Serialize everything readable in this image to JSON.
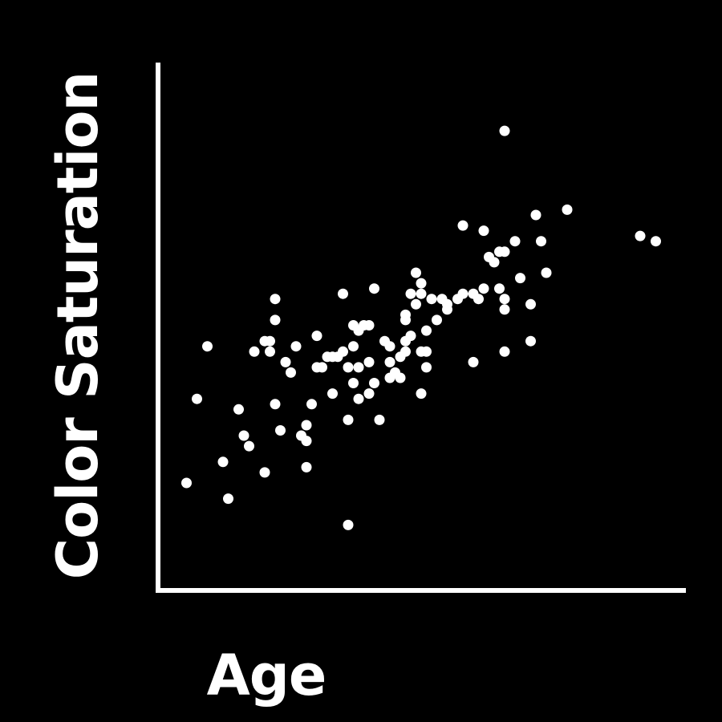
{
  "chart_data": {
    "type": "scatter",
    "title": "",
    "xlabel": "Age",
    "ylabel": "Color Saturation",
    "xlim": [
      0,
      100
    ],
    "ylim": [
      0,
      100
    ],
    "grid": false,
    "legend": "none",
    "colors": {
      "background": "#000000",
      "foreground": "#ffffff",
      "points": "#ffffff"
    },
    "points": [
      [
        5,
        20
      ],
      [
        7,
        36
      ],
      [
        9,
        46
      ],
      [
        12,
        24
      ],
      [
        13,
        17
      ],
      [
        15,
        34
      ],
      [
        16,
        29
      ],
      [
        17,
        27
      ],
      [
        18,
        45
      ],
      [
        20,
        22
      ],
      [
        21,
        45
      ],
      [
        20,
        47
      ],
      [
        21,
        47
      ],
      [
        22,
        55
      ],
      [
        22,
        51
      ],
      [
        22,
        35
      ],
      [
        23,
        30
      ],
      [
        24,
        43
      ],
      [
        25,
        41
      ],
      [
        26,
        46
      ],
      [
        27,
        29
      ],
      [
        28,
        31
      ],
      [
        28,
        28
      ],
      [
        28,
        23
      ],
      [
        29,
        35
      ],
      [
        30,
        48
      ],
      [
        30,
        42
      ],
      [
        31,
        42
      ],
      [
        32,
        44
      ],
      [
        33,
        37
      ],
      [
        33,
        44
      ],
      [
        34,
        44
      ],
      [
        35,
        56
      ],
      [
        35,
        45
      ],
      [
        36,
        32
      ],
      [
        36,
        42
      ],
      [
        36,
        12
      ],
      [
        37,
        50
      ],
      [
        37,
        46
      ],
      [
        37,
        39
      ],
      [
        38,
        49
      ],
      [
        38,
        36
      ],
      [
        38,
        42
      ],
      [
        39,
        50
      ],
      [
        40,
        37
      ],
      [
        40,
        50
      ],
      [
        40,
        43
      ],
      [
        41,
        39
      ],
      [
        41,
        57
      ],
      [
        42,
        32
      ],
      [
        43,
        47
      ],
      [
        44,
        46
      ],
      [
        44,
        43
      ],
      [
        44,
        40
      ],
      [
        45,
        41
      ],
      [
        46,
        40
      ],
      [
        46,
        44
      ],
      [
        47,
        47
      ],
      [
        47,
        52
      ],
      [
        47,
        45
      ],
      [
        47,
        51
      ],
      [
        48,
        48
      ],
      [
        48,
        56
      ],
      [
        49,
        54
      ],
      [
        49,
        60
      ],
      [
        50,
        58
      ],
      [
        50,
        56
      ],
      [
        50,
        45
      ],
      [
        50,
        37
      ],
      [
        51,
        42
      ],
      [
        51,
        45
      ],
      [
        51,
        49
      ],
      [
        52,
        55
      ],
      [
        53,
        51
      ],
      [
        54,
        55
      ],
      [
        55,
        54
      ],
      [
        55,
        53
      ],
      [
        57,
        55
      ],
      [
        58,
        56
      ],
      [
        58,
        69
      ],
      [
        60,
        56
      ],
      [
        60,
        43
      ],
      [
        61,
        55
      ],
      [
        62,
        57
      ],
      [
        62,
        68
      ],
      [
        63,
        63
      ],
      [
        64,
        62
      ],
      [
        65,
        64
      ],
      [
        65,
        57
      ],
      [
        66,
        55
      ],
      [
        66,
        64
      ],
      [
        66,
        53
      ],
      [
        66,
        45
      ],
      [
        66,
        87
      ],
      [
        68,
        66
      ],
      [
        69,
        59
      ],
      [
        71,
        54
      ],
      [
        71,
        47
      ],
      [
        72,
        71
      ],
      [
        73,
        66
      ],
      [
        74,
        60
      ],
      [
        78,
        72
      ],
      [
        92,
        67
      ],
      [
        95,
        66
      ]
    ]
  }
}
